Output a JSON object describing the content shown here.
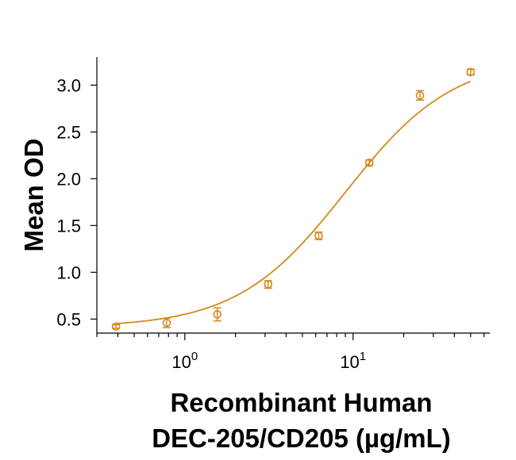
{
  "chart_data": {
    "type": "scatter",
    "xlabel_line1": "Recombinant Human",
    "xlabel_line2": "DEC-205/CD205 (µg/mL)",
    "ylabel": "Mean OD",
    "xscale": "log",
    "xlim": [
      0.3,
      65
    ],
    "ylim": [
      0.35,
      3.3
    ],
    "y_ticks": [
      0.5,
      1.0,
      1.5,
      2.0,
      2.5,
      3.0
    ],
    "y_tick_labels": [
      "0.5",
      "1.0",
      "1.5",
      "2.0",
      "2.5",
      "3.0"
    ],
    "x_major_ticks": [
      {
        "value": 1,
        "base": "10",
        "exp": "0"
      },
      {
        "value": 10,
        "base": "10",
        "exp": "1"
      }
    ],
    "color": "#D4891C",
    "grid": false,
    "legend": "none",
    "series": [
      {
        "x": [
          0.39,
          0.78,
          1.56,
          3.13,
          6.25,
          12.5,
          25,
          50
        ],
        "y": [
          0.42,
          0.46,
          0.55,
          0.87,
          1.39,
          2.17,
          2.89,
          3.14
        ],
        "err": [
          0.02,
          0.05,
          0.07,
          0.04,
          0.04,
          0.03,
          0.05,
          0.03
        ]
      }
    ],
    "curve": "4PL fit"
  }
}
